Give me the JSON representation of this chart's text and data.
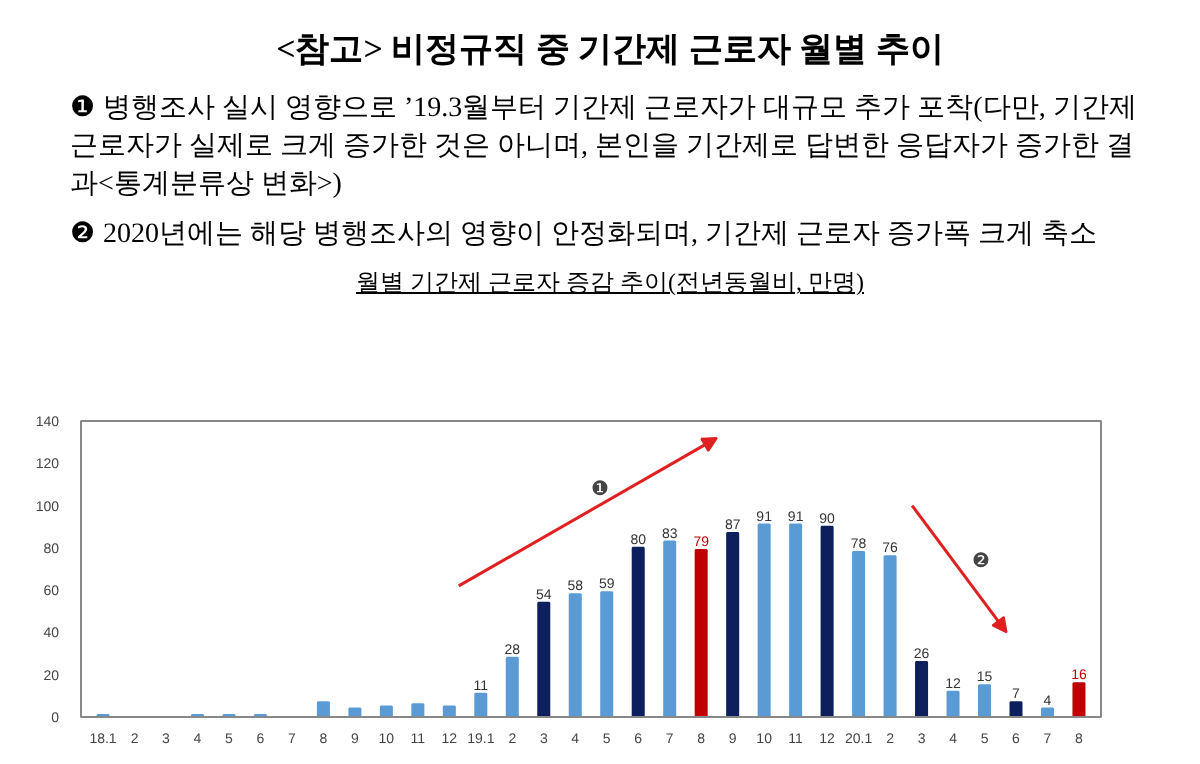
{
  "chart_data": {
    "type": "bar",
    "title": "<참고> 비정규직 중 기간제 근로자 월별 추이",
    "subtitle": "월별 기간제 근로자 증감 추이(전년동월비, 만명)",
    "annotations": [
      "❶ 병행조사 실시 영향으로 ’19.3월부터 기간제 근로자가 대규모 추가 포착(다만, 기간제 근로자가 실제로 크게 증가한 것은 아니며, 본인을 기간제로 답변한 응답자가 증가한 결과<통계분류상 변화>)",
      "❷ 2020년에는 해당 병행조사의 영향이 안정화되며, 기간제 근로자 증가폭 크게 축소",
      "❶",
      "❷"
    ],
    "categories": [
      "18.1",
      "2",
      "3",
      "4",
      "5",
      "6",
      "7",
      "8",
      "9",
      "10",
      "11",
      "12",
      "19.1",
      "2",
      "3",
      "4",
      "5",
      "6",
      "7",
      "8",
      "9",
      "10",
      "11",
      "12",
      "20.1",
      "2",
      "3",
      "4",
      "5",
      "6",
      "7",
      "8"
    ],
    "values": [
      1,
      0,
      0,
      1,
      1,
      1,
      0,
      7,
      4,
      5,
      6,
      5,
      11,
      28,
      54,
      58,
      59,
      80,
      83,
      79,
      87,
      91,
      91,
      90,
      78,
      76,
      26,
      12,
      15,
      7,
      4,
      16
    ],
    "value_labels": [
      null,
      null,
      null,
      null,
      null,
      null,
      null,
      null,
      null,
      null,
      null,
      null,
      "11",
      "28",
      "54",
      "58",
      "59",
      "80",
      "83",
      "79",
      "87",
      "91",
      "91",
      "90",
      "78",
      "76",
      "26",
      "12",
      "15",
      "7",
      "4",
      "16"
    ],
    "colors": [
      "#5b9bd5",
      "#5b9bd5",
      "#5b9bd5",
      "#5b9bd5",
      "#5b9bd5",
      "#5b9bd5",
      "#5b9bd5",
      "#5b9bd5",
      "#5b9bd5",
      "#5b9bd5",
      "#5b9bd5",
      "#5b9bd5",
      "#5b9bd5",
      "#5b9bd5",
      "#0d1f5c",
      "#5b9bd5",
      "#5b9bd5",
      "#0d1f5c",
      "#5b9bd5",
      "#c00000",
      "#0d1f5c",
      "#5b9bd5",
      "#5b9bd5",
      "#0d1f5c",
      "#5b9bd5",
      "#5b9bd5",
      "#0d1f5c",
      "#5b9bd5",
      "#5b9bd5",
      "#0d1f5c",
      "#5b9bd5",
      "#c00000"
    ],
    "ylim": [
      0,
      140
    ],
    "yticks": [
      0,
      20,
      40,
      60,
      80,
      100,
      120,
      140
    ],
    "grid": false
  }
}
